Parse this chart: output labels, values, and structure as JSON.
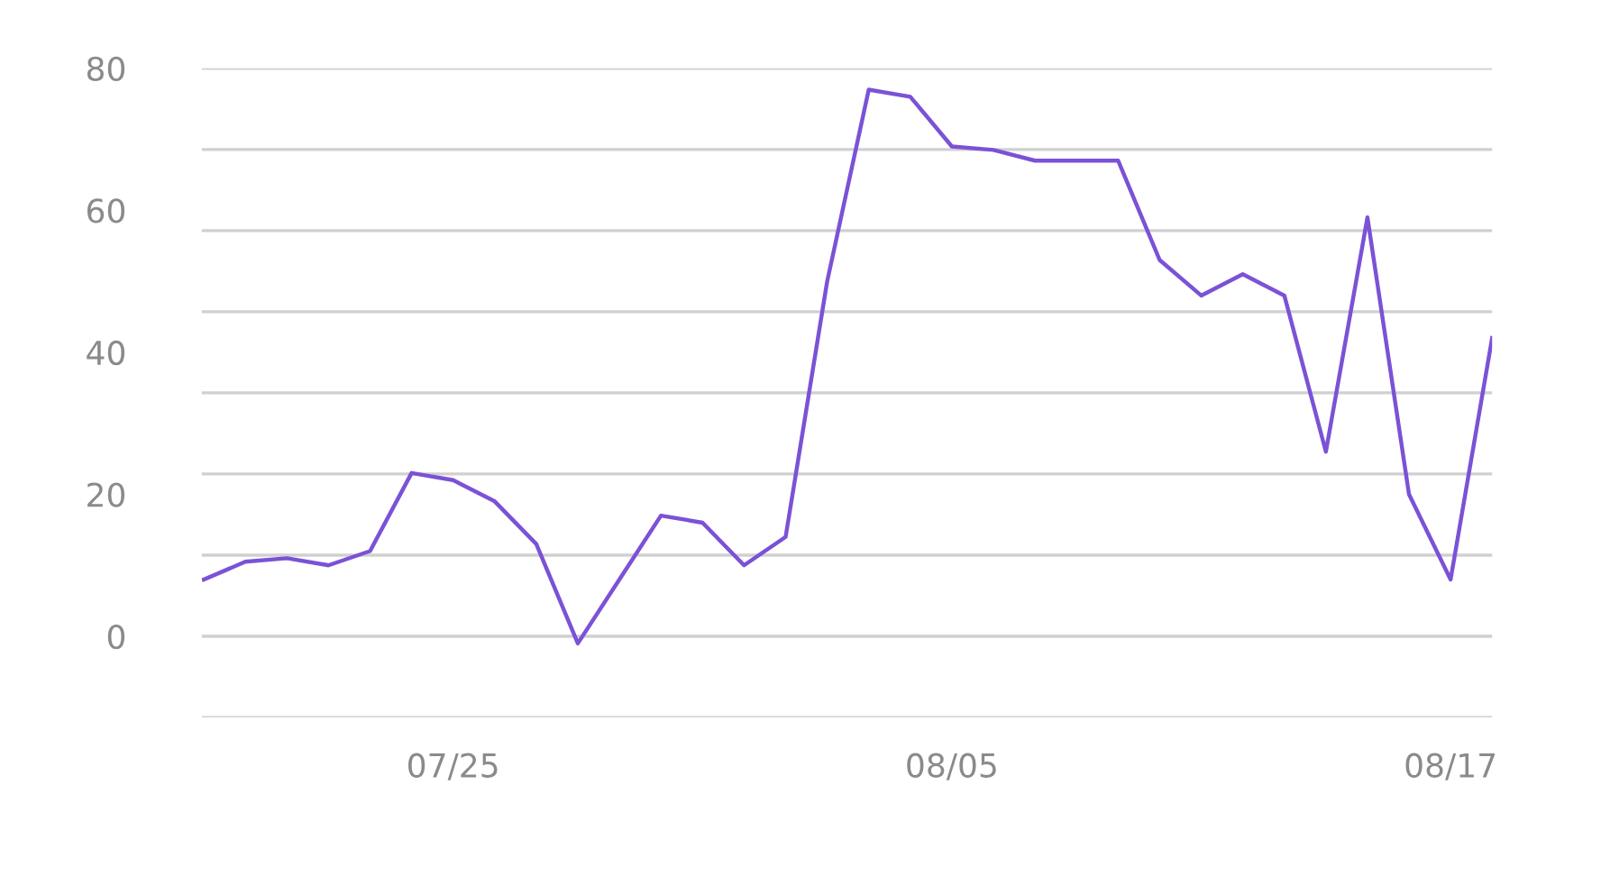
{
  "chart_data": {
    "type": "line",
    "categories": [
      null,
      null,
      null,
      null,
      null,
      null,
      "07/25",
      null,
      null,
      null,
      null,
      null,
      null,
      null,
      null,
      null,
      null,
      null,
      "08/05",
      null,
      null,
      null,
      null,
      null,
      null,
      null,
      null,
      null,
      null,
      null,
      "08/17",
      null
    ],
    "series": [
      {
        "color": "#7b52d6",
        "values": [
          8,
          10.5,
          11,
          10,
          12,
          23,
          22,
          19,
          13,
          -1,
          8,
          17,
          16,
          10,
          14,
          50,
          77,
          76,
          69,
          68.5,
          67,
          67,
          67,
          53,
          48,
          51,
          48,
          26,
          59,
          20,
          8,
          42
        ]
      }
    ],
    "ylim": [
      -11.43,
      80
    ],
    "yticks": [
      0,
      20,
      40,
      60,
      80,
      {
        "value": -11.43,
        "label": null
      },
      {
        "value": 0,
        "label": null
      },
      {
        "value": 11.43,
        "label": null
      },
      {
        "value": 22.86,
        "label": null
      },
      {
        "value": 34.29,
        "label": null
      },
      {
        "value": 45.71,
        "label": null
      },
      {
        "value": 57.14,
        "label": null
      },
      {
        "value": 68.57,
        "label": null
      },
      {
        "value": 80,
        "label": null
      }
    ],
    "grid": "y",
    "marker": "none",
    "line_style": "solid"
  }
}
